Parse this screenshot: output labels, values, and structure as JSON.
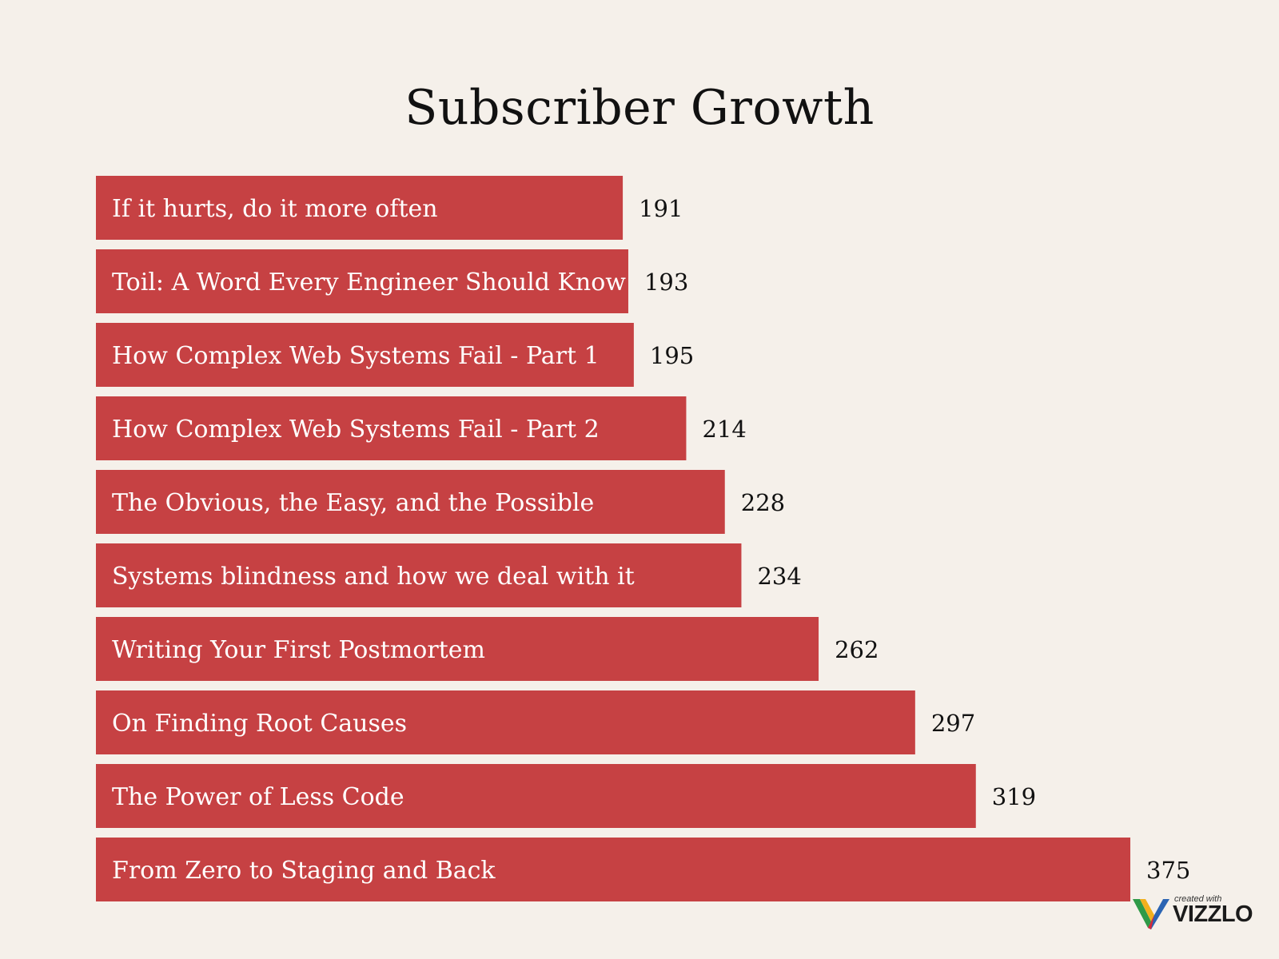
{
  "chart_data": {
    "type": "bar",
    "orientation": "horizontal",
    "title": "Subscriber Growth",
    "categories": [
      "If it hurts, do it more often",
      "Toil: A Word Every Engineer Should Know",
      "How Complex Web Systems Fail - Part 1",
      "How Complex Web Systems Fail - Part 2",
      "The Obvious, the Easy, and the Possible",
      "Systems blindness and how we deal with it",
      "Writing Your First Postmortem",
      "On Finding Root Causes",
      "The Power of Less Code",
      "From Zero to Staging and Back"
    ],
    "values": [
      191,
      193,
      195,
      214,
      228,
      234,
      262,
      297,
      319,
      375
    ],
    "data_labels": true,
    "grid": false,
    "bar_color": "#c64143"
  },
  "watermark": {
    "small_text": "created with",
    "brand": "VIZZLO"
  },
  "colors": {
    "background": "#f5f0ea",
    "bar": "#c64143",
    "label_on_bar": "#ffffff",
    "value_text": "#111111"
  }
}
